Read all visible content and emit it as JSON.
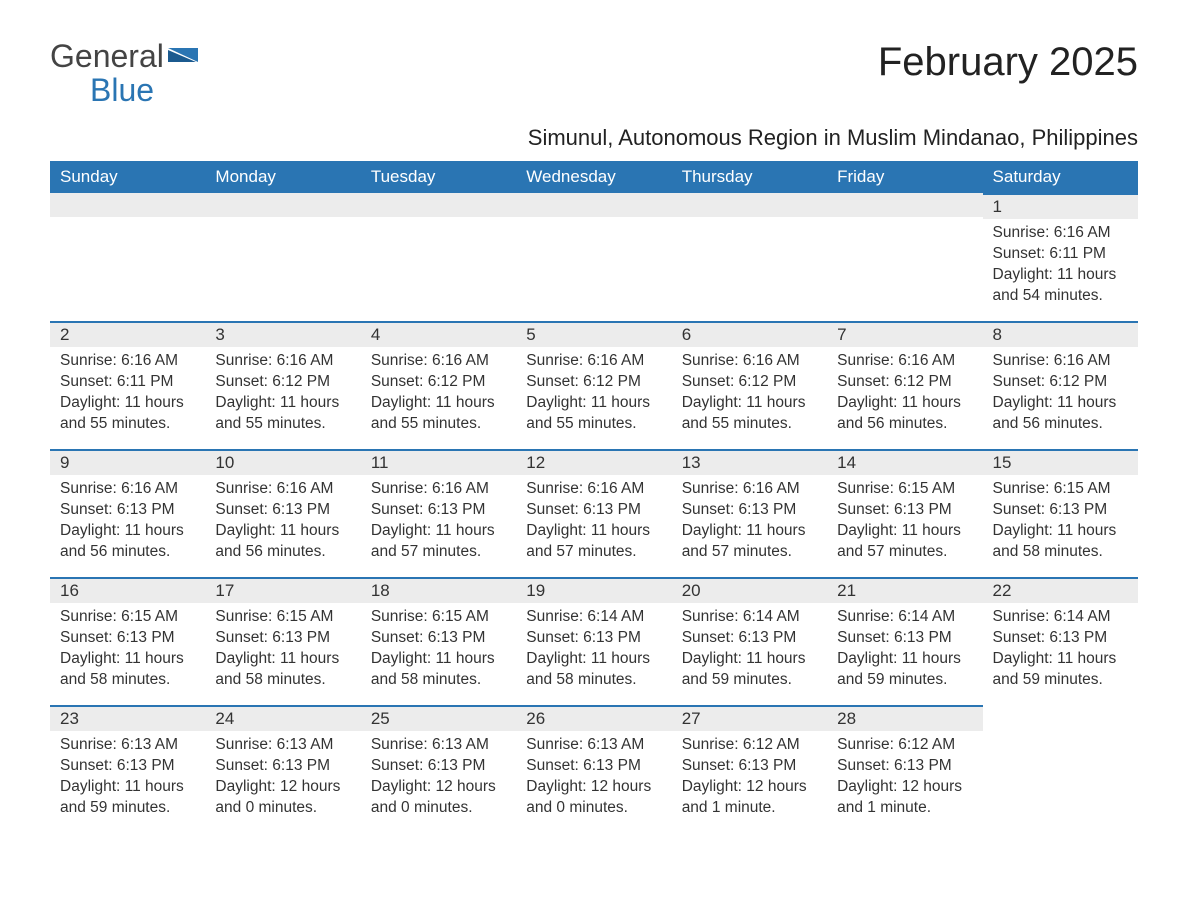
{
  "logo": {
    "general": "General",
    "blue": "Blue"
  },
  "title": "February 2025",
  "subtitle": "Simunul, Autonomous Region in Muslim Mindanao, Philippines",
  "colors": {
    "header_bg": "#2a75b3",
    "header_text": "#ffffff",
    "daynum_bg": "#ececec",
    "border_top": "#2a75b3"
  },
  "weekdays": [
    "Sunday",
    "Monday",
    "Tuesday",
    "Wednesday",
    "Thursday",
    "Friday",
    "Saturday"
  ],
  "weeks": [
    [
      null,
      null,
      null,
      null,
      null,
      null,
      {
        "n": "1",
        "sr": "Sunrise: 6:16 AM",
        "ss": "Sunset: 6:11 PM",
        "dl": "Daylight: 11 hours and 54 minutes."
      }
    ],
    [
      {
        "n": "2",
        "sr": "Sunrise: 6:16 AM",
        "ss": "Sunset: 6:11 PM",
        "dl": "Daylight: 11 hours and 55 minutes."
      },
      {
        "n": "3",
        "sr": "Sunrise: 6:16 AM",
        "ss": "Sunset: 6:12 PM",
        "dl": "Daylight: 11 hours and 55 minutes."
      },
      {
        "n": "4",
        "sr": "Sunrise: 6:16 AM",
        "ss": "Sunset: 6:12 PM",
        "dl": "Daylight: 11 hours and 55 minutes."
      },
      {
        "n": "5",
        "sr": "Sunrise: 6:16 AM",
        "ss": "Sunset: 6:12 PM",
        "dl": "Daylight: 11 hours and 55 minutes."
      },
      {
        "n": "6",
        "sr": "Sunrise: 6:16 AM",
        "ss": "Sunset: 6:12 PM",
        "dl": "Daylight: 11 hours and 55 minutes."
      },
      {
        "n": "7",
        "sr": "Sunrise: 6:16 AM",
        "ss": "Sunset: 6:12 PM",
        "dl": "Daylight: 11 hours and 56 minutes."
      },
      {
        "n": "8",
        "sr": "Sunrise: 6:16 AM",
        "ss": "Sunset: 6:12 PM",
        "dl": "Daylight: 11 hours and 56 minutes."
      }
    ],
    [
      {
        "n": "9",
        "sr": "Sunrise: 6:16 AM",
        "ss": "Sunset: 6:13 PM",
        "dl": "Daylight: 11 hours and 56 minutes."
      },
      {
        "n": "10",
        "sr": "Sunrise: 6:16 AM",
        "ss": "Sunset: 6:13 PM",
        "dl": "Daylight: 11 hours and 56 minutes."
      },
      {
        "n": "11",
        "sr": "Sunrise: 6:16 AM",
        "ss": "Sunset: 6:13 PM",
        "dl": "Daylight: 11 hours and 57 minutes."
      },
      {
        "n": "12",
        "sr": "Sunrise: 6:16 AM",
        "ss": "Sunset: 6:13 PM",
        "dl": "Daylight: 11 hours and 57 minutes."
      },
      {
        "n": "13",
        "sr": "Sunrise: 6:16 AM",
        "ss": "Sunset: 6:13 PM",
        "dl": "Daylight: 11 hours and 57 minutes."
      },
      {
        "n": "14",
        "sr": "Sunrise: 6:15 AM",
        "ss": "Sunset: 6:13 PM",
        "dl": "Daylight: 11 hours and 57 minutes."
      },
      {
        "n": "15",
        "sr": "Sunrise: 6:15 AM",
        "ss": "Sunset: 6:13 PM",
        "dl": "Daylight: 11 hours and 58 minutes."
      }
    ],
    [
      {
        "n": "16",
        "sr": "Sunrise: 6:15 AM",
        "ss": "Sunset: 6:13 PM",
        "dl": "Daylight: 11 hours and 58 minutes."
      },
      {
        "n": "17",
        "sr": "Sunrise: 6:15 AM",
        "ss": "Sunset: 6:13 PM",
        "dl": "Daylight: 11 hours and 58 minutes."
      },
      {
        "n": "18",
        "sr": "Sunrise: 6:15 AM",
        "ss": "Sunset: 6:13 PM",
        "dl": "Daylight: 11 hours and 58 minutes."
      },
      {
        "n": "19",
        "sr": "Sunrise: 6:14 AM",
        "ss": "Sunset: 6:13 PM",
        "dl": "Daylight: 11 hours and 58 minutes."
      },
      {
        "n": "20",
        "sr": "Sunrise: 6:14 AM",
        "ss": "Sunset: 6:13 PM",
        "dl": "Daylight: 11 hours and 59 minutes."
      },
      {
        "n": "21",
        "sr": "Sunrise: 6:14 AM",
        "ss": "Sunset: 6:13 PM",
        "dl": "Daylight: 11 hours and 59 minutes."
      },
      {
        "n": "22",
        "sr": "Sunrise: 6:14 AM",
        "ss": "Sunset: 6:13 PM",
        "dl": "Daylight: 11 hours and 59 minutes."
      }
    ],
    [
      {
        "n": "23",
        "sr": "Sunrise: 6:13 AM",
        "ss": "Sunset: 6:13 PM",
        "dl": "Daylight: 11 hours and 59 minutes."
      },
      {
        "n": "24",
        "sr": "Sunrise: 6:13 AM",
        "ss": "Sunset: 6:13 PM",
        "dl": "Daylight: 12 hours and 0 minutes."
      },
      {
        "n": "25",
        "sr": "Sunrise: 6:13 AM",
        "ss": "Sunset: 6:13 PM",
        "dl": "Daylight: 12 hours and 0 minutes."
      },
      {
        "n": "26",
        "sr": "Sunrise: 6:13 AM",
        "ss": "Sunset: 6:13 PM",
        "dl": "Daylight: 12 hours and 0 minutes."
      },
      {
        "n": "27",
        "sr": "Sunrise: 6:12 AM",
        "ss": "Sunset: 6:13 PM",
        "dl": "Daylight: 12 hours and 1 minute."
      },
      {
        "n": "28",
        "sr": "Sunrise: 6:12 AM",
        "ss": "Sunset: 6:13 PM",
        "dl": "Daylight: 12 hours and 1 minute."
      },
      null
    ]
  ]
}
